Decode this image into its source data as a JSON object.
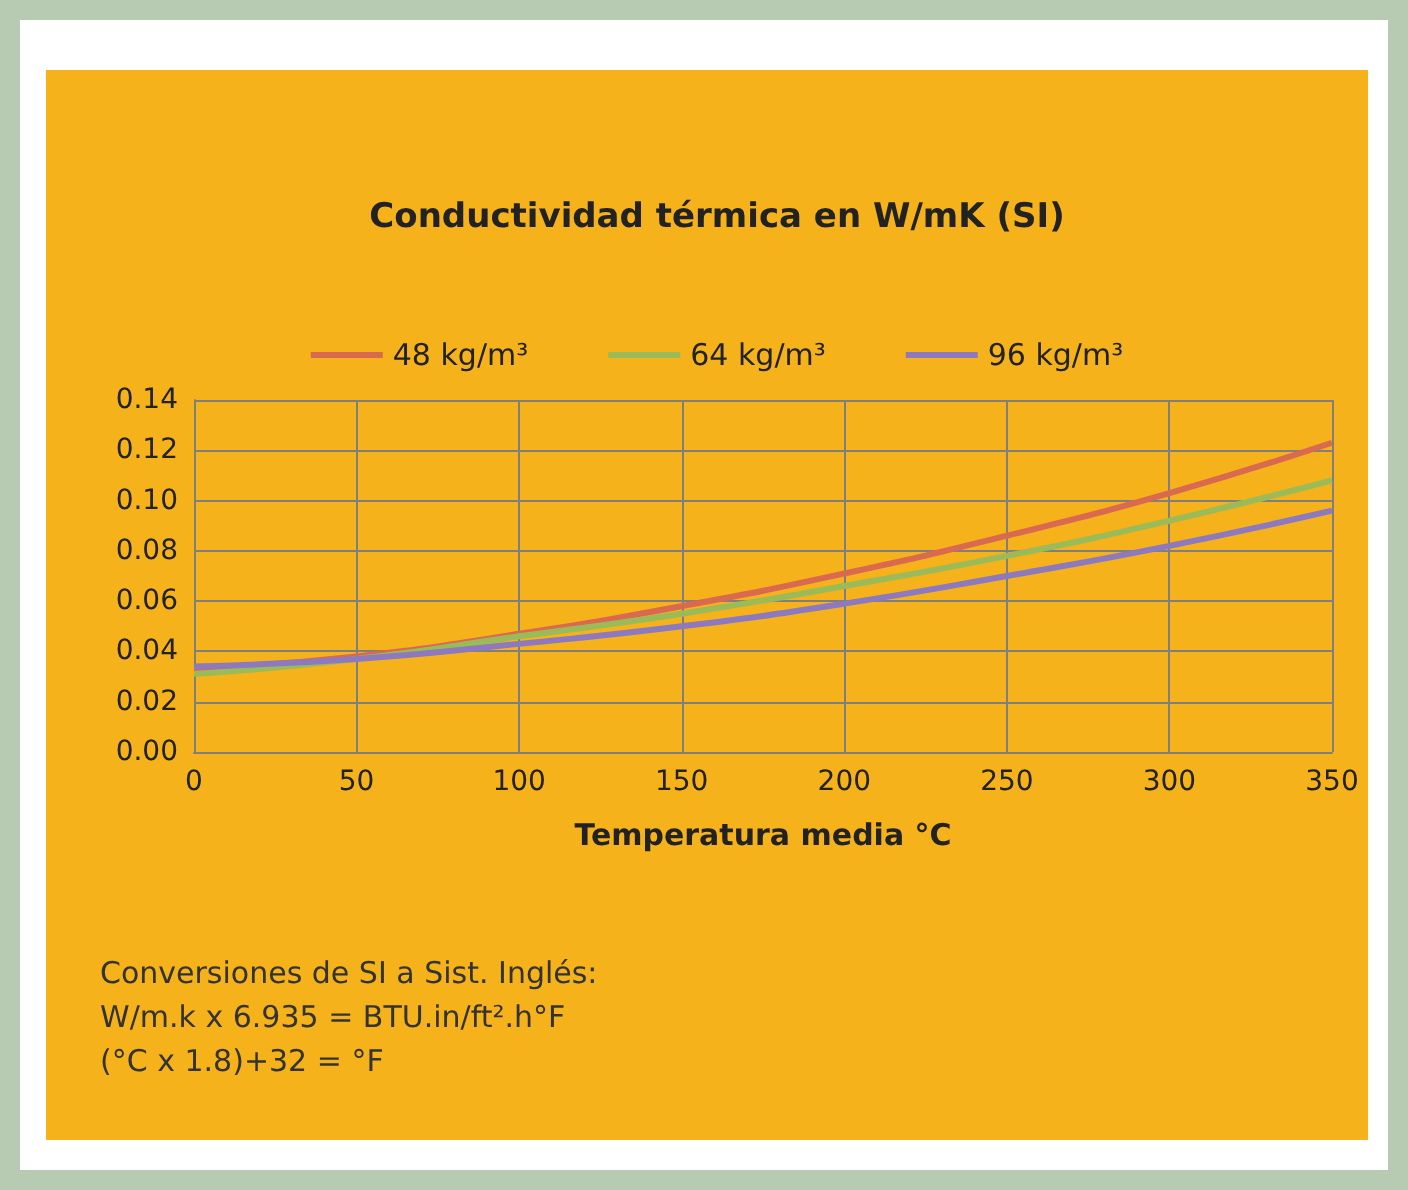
{
  "chart_data": {
    "type": "line",
    "title": "Conductividad térmica en W/mK (SI)",
    "xlabel": "Temperatura media °C",
    "x": [
      0,
      50,
      100,
      150,
      200,
      250,
      300,
      350
    ],
    "series": [
      {
        "name": "48 kg/m³",
        "color": "#d9694f",
        "values": [
          0.033,
          0.038,
          0.047,
          0.058,
          0.071,
          0.086,
          0.103,
          0.123
        ]
      },
      {
        "name": "64 kg/m³",
        "color": "#9bbb59",
        "values": [
          0.031,
          0.037,
          0.046,
          0.055,
          0.066,
          0.078,
          0.092,
          0.108
        ]
      },
      {
        "name": "96 kg/m³",
        "color": "#8c79c0",
        "values": [
          0.034,
          0.037,
          0.043,
          0.05,
          0.059,
          0.07,
          0.082,
          0.096
        ]
      }
    ],
    "xlim": [
      0,
      350
    ],
    "xticks": [
      0,
      50,
      100,
      150,
      200,
      250,
      300,
      350
    ],
    "ylim": [
      0,
      0.14
    ],
    "yticks": [
      {
        "value": 0,
        "label": "0.00"
      },
      {
        "value": 0.02,
        "label": "0.02"
      },
      {
        "value": 0.04,
        "label": "0.04"
      },
      {
        "value": 0.06,
        "label": "0.06"
      },
      {
        "value": 0.08,
        "label": "0.08"
      },
      {
        "value": 0.1,
        "label": "0.10"
      },
      {
        "value": 0.12,
        "label": "0.12"
      },
      {
        "value": 0.14,
        "label": "0.14"
      }
    ],
    "grid": true,
    "legend": "top",
    "marker": "none",
    "line_style": "solid",
    "annotations": [
      "Conversiones de SI a Sist. Inglés:",
      "W/m.k x 6.935 = BTU.in/ft².h°F",
      "(°C x 1.8)+32 = °F"
    ]
  }
}
